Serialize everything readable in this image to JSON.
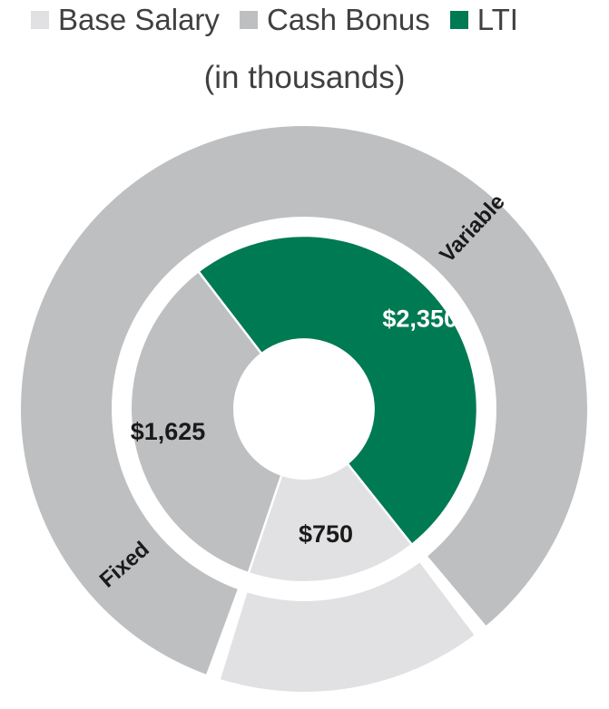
{
  "chart_data": {
    "type": "pie",
    "subtitle": "(in thousands)",
    "legend_position": "top",
    "legend": [
      {
        "label": "Base Salary",
        "color": "#e1e1e3"
      },
      {
        "label": "Cash Bonus",
        "color": "#bebfc1"
      },
      {
        "label": "LTI",
        "color": "#007a52"
      }
    ],
    "inner_ring": [
      {
        "name": "Base Salary",
        "value": 750,
        "label": "$750",
        "color": "#e1e1e3",
        "label_color": "#1a1a1a"
      },
      {
        "name": "Cash Bonus",
        "value": 1625,
        "label": "$1,625",
        "color": "#bebfc1",
        "label_color": "#1a1a1a"
      },
      {
        "name": "LTI",
        "value": 2350,
        "label": "$2,350",
        "color": "#007a52",
        "label_color": "#ffffff"
      }
    ],
    "outer_ring": [
      {
        "label": "Fixed",
        "value": 750,
        "color": "#e1e1e3"
      },
      {
        "label": "Variable",
        "value": 3975,
        "color": "#bebfc1"
      }
    ]
  }
}
